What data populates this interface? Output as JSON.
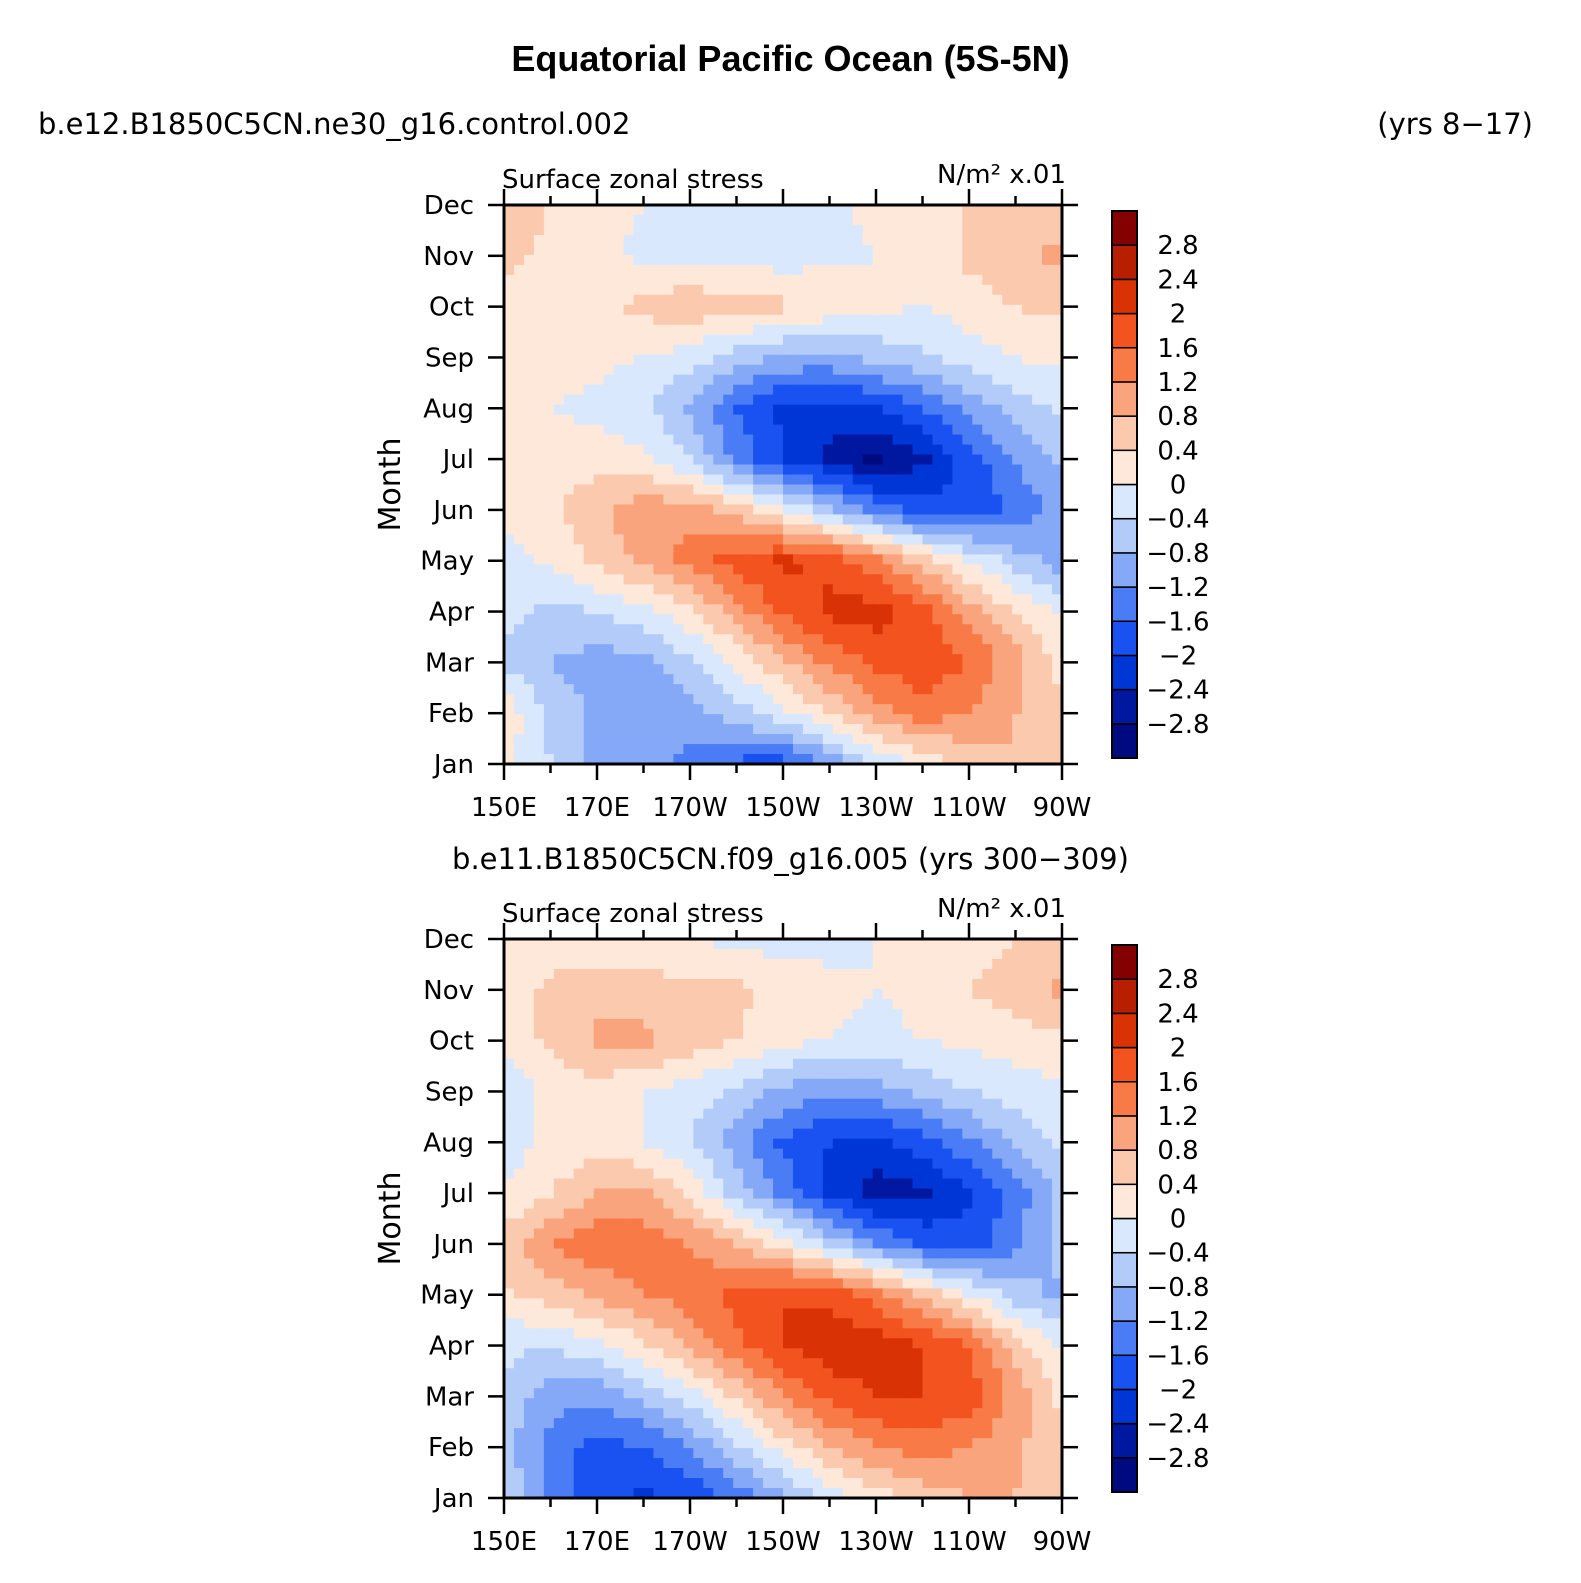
{
  "figure": {
    "title": "Equatorial Pacific Ocean (5S-5N)"
  },
  "panels_text": {
    "p1_case": "b.e12.B1850C5CN.ne30_g16.control.002",
    "p1_years": "(yrs 8−17)",
    "p2_case": "b.e11.B1850C5CN.f09_g16.005 (yrs 300−309)",
    "variable": "Surface zonal stress",
    "units": "N/m² x.01",
    "ylabel": "Month"
  },
  "colors": {
    "levels_palette": [
      "#000a80",
      "#0018a0",
      "#0035d6",
      "#1a52f2",
      "#4a7df5",
      "#86a9f7",
      "#b3cbf9",
      "#d9e8fc",
      "#fde8da",
      "#fbc9ad",
      "#f9a47d",
      "#f77a47",
      "#f2531f",
      "#d93305",
      "#b81e00",
      "#850000"
    ]
  },
  "chart_data": [
    {
      "type": "heatmap",
      "id": "control",
      "title": "Surface zonal stress",
      "units": "N/m² x.01",
      "case": "b.e12.B1850C5CN.ne30_g16.control.002",
      "years": "(yrs 8−17)",
      "xlabel": "",
      "ylabel": "Month",
      "x_ticks": [
        "150E",
        "170E",
        "170W",
        "150W",
        "130W",
        "110W",
        "90W"
      ],
      "x_lon": [
        150,
        170,
        190,
        210,
        230,
        250,
        270
      ],
      "y_ticks": [
        "Jan",
        "Feb",
        "Mar",
        "Apr",
        "May",
        "Jun",
        "Jul",
        "Aug",
        "Sep",
        "Oct",
        "Nov",
        "Dec"
      ],
      "levels": [
        -2.8,
        -2.4,
        -2.0,
        -1.6,
        -1.2,
        -0.8,
        -0.4,
        0,
        0.4,
        0.8,
        1.2,
        1.6,
        2.0,
        2.4,
        2.8
      ],
      "grid_lon": [
        150,
        160,
        170,
        180,
        190,
        200,
        210,
        220,
        230,
        240,
        250,
        260,
        270
      ],
      "values": [
        [
          0.1,
          -0.4,
          -0.9,
          -1.0,
          -1.3,
          -1.7,
          -1.8,
          -1.1,
          -0.4,
          0.1,
          0.5,
          0.8,
          0.7
        ],
        [
          0.3,
          -0.5,
          -0.9,
          -1.1,
          -1.0,
          -0.6,
          -0.1,
          0.4,
          1.0,
          1.4,
          1.2,
          0.8,
          0.5
        ],
        [
          -0.5,
          -0.8,
          -1.0,
          -0.9,
          -0.5,
          0.1,
          0.7,
          1.3,
          1.7,
          1.9,
          1.6,
          1.0,
          0.2
        ],
        [
          -0.3,
          -0.5,
          -0.4,
          -0.1,
          0.3,
          1.0,
          1.7,
          2.1,
          2.2,
          1.8,
          1.0,
          0.4,
          -0.1
        ],
        [
          -0.2,
          0.1,
          0.5,
          0.9,
          1.4,
          1.8,
          2.1,
          1.9,
          1.3,
          0.6,
          0.0,
          -0.6,
          -1.0
        ],
        [
          0.1,
          0.3,
          0.7,
          1.1,
          1.0,
          0.6,
          0.0,
          -0.7,
          -1.4,
          -1.8,
          -1.9,
          -1.5,
          -1.0
        ],
        [
          0.2,
          0.2,
          0.2,
          0.1,
          -0.4,
          -1.3,
          -2.0,
          -2.5,
          -2.9,
          -2.5,
          -1.8,
          -1.2,
          -0.7
        ],
        [
          0.1,
          0.0,
          -0.1,
          -0.3,
          -0.9,
          -1.6,
          -2.1,
          -2.2,
          -2.0,
          -1.6,
          -1.1,
          -0.6,
          -0.3
        ],
        [
          0.2,
          0.2,
          0.1,
          0.0,
          -0.2,
          -0.6,
          -0.9,
          -0.9,
          -0.7,
          -0.5,
          -0.2,
          0.0,
          0.1
        ],
        [
          0.3,
          0.3,
          0.3,
          0.5,
          0.7,
          0.6,
          0.5,
          0.3,
          0.1,
          0.0,
          0.2,
          0.4,
          0.5
        ],
        [
          0.5,
          0.3,
          0.1,
          -0.1,
          -0.1,
          -0.2,
          -0.2,
          -0.1,
          0.0,
          0.1,
          0.5,
          0.7,
          0.9
        ],
        [
          0.6,
          0.4,
          0.2,
          0.0,
          -0.1,
          -0.2,
          -0.2,
          -0.1,
          0.1,
          0.2,
          0.4,
          0.5,
          0.6
        ]
      ]
    },
    {
      "type": "heatmap",
      "id": "f09",
      "title": "Surface zonal stress",
      "units": "N/m² x.01",
      "case": "b.e11.B1850C5CN.f09_g16.005 (yrs 300−309)",
      "xlabel": "",
      "ylabel": "Month",
      "x_ticks": [
        "150E",
        "170E",
        "170W",
        "150W",
        "130W",
        "110W",
        "90W"
      ],
      "x_lon": [
        150,
        170,
        190,
        210,
        230,
        250,
        270
      ],
      "y_ticks": [
        "Jan",
        "Feb",
        "Mar",
        "Apr",
        "May",
        "Jun",
        "Jul",
        "Aug",
        "Sep",
        "Oct",
        "Nov",
        "Dec"
      ],
      "levels": [
        -2.8,
        -2.4,
        -2.0,
        -1.6,
        -1.2,
        -0.8,
        -0.4,
        0,
        0.4,
        0.8,
        1.2,
        1.6,
        2.0,
        2.4,
        2.8
      ],
      "grid_lon": [
        150,
        160,
        170,
        180,
        190,
        200,
        210,
        220,
        230,
        240,
        250,
        260,
        270
      ],
      "values": [
        [
          -0.4,
          -1.3,
          -1.8,
          -2.1,
          -1.9,
          -1.5,
          -0.9,
          -0.3,
          0.2,
          0.6,
          0.8,
          0.8,
          0.5
        ],
        [
          -0.6,
          -1.4,
          -1.8,
          -1.6,
          -1.2,
          -0.5,
          0.2,
          0.8,
          1.2,
          1.4,
          1.2,
          0.9,
          0.4
        ],
        [
          -0.5,
          -1.0,
          -1.1,
          -0.7,
          -0.2,
          0.5,
          1.2,
          1.7,
          2.0,
          2.0,
          1.8,
          1.1,
          0.3
        ],
        [
          -0.3,
          -0.4,
          -0.1,
          0.3,
          0.9,
          1.5,
          2.0,
          2.3,
          2.3,
          2.0,
          1.6,
          0.6,
          -0.1
        ],
        [
          0.3,
          0.6,
          0.9,
          1.2,
          1.4,
          1.7,
          2.0,
          1.9,
          1.4,
          0.7,
          0.0,
          -0.6,
          -0.9
        ],
        [
          0.6,
          1.2,
          1.5,
          1.4,
          1.2,
          0.8,
          0.2,
          -0.5,
          -1.2,
          -1.7,
          -1.8,
          -1.3,
          -0.6
        ],
        [
          0.0,
          0.4,
          0.8,
          0.9,
          0.3,
          -0.6,
          -1.3,
          -2.1,
          -2.6,
          -2.5,
          -2.1,
          -1.4,
          -0.7
        ],
        [
          -0.2,
          0.1,
          0.2,
          0.0,
          -0.4,
          -1.0,
          -1.7,
          -2.0,
          -2.1,
          -1.8,
          -1.3,
          -0.7,
          -0.3
        ],
        [
          -0.3,
          0.1,
          0.2,
          0.0,
          -0.2,
          -0.5,
          -0.9,
          -1.1,
          -1.0,
          -0.7,
          -0.4,
          -0.2,
          -0.1
        ],
        [
          0.1,
          0.5,
          0.9,
          0.9,
          0.6,
          0.4,
          0.1,
          0.0,
          -0.1,
          0.0,
          0.1,
          0.2,
          0.3
        ],
        [
          0.2,
          0.5,
          0.6,
          0.6,
          0.5,
          0.5,
          0.3,
          0.1,
          0.0,
          0.1,
          0.4,
          0.6,
          0.9
        ],
        [
          0.1,
          0.2,
          0.2,
          0.1,
          0.0,
          -0.1,
          -0.2,
          -0.1,
          0.0,
          0.1,
          0.2,
          0.4,
          0.5
        ]
      ]
    }
  ]
}
